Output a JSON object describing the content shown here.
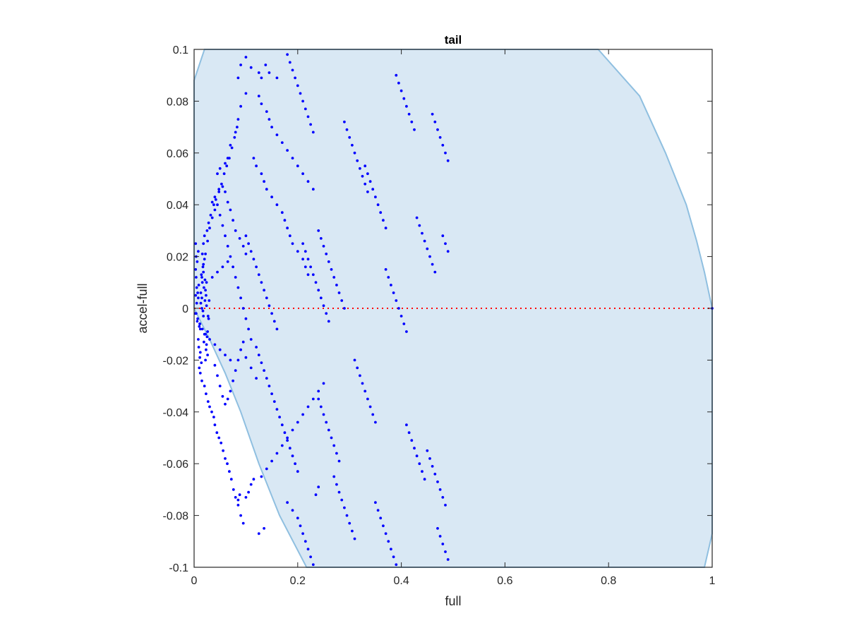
{
  "chart_data": {
    "type": "scatter",
    "title": "tail",
    "xlabel": "full",
    "ylabel": "accel-full",
    "xlim": [
      0,
      1
    ],
    "ylim": [
      -0.1,
      0.1
    ],
    "xticks": [
      0,
      0.2,
      0.4,
      0.6,
      0.8,
      1
    ],
    "xtick_labels": [
      "0",
      "0.2",
      "0.4",
      "0.6",
      "0.8",
      "1"
    ],
    "yticks": [
      0.1,
      0.08,
      0.06,
      0.04,
      0.02,
      0,
      -0.02,
      -0.04,
      -0.06,
      -0.08,
      -0.1
    ],
    "ytick_labels": [
      "0.1",
      "0.08",
      "0.06",
      "0.04",
      "0.02",
      "0",
      "-0.02",
      "-0.04",
      "-0.06",
      "-0.08",
      "-0.1"
    ],
    "grid": false,
    "colors": {
      "points": "#0000ff",
      "region_fill": "#d9e8f4",
      "region_edge": "#8fbfe0",
      "zero_line": "#ff0000",
      "axes": "#262626"
    },
    "region_boundary": [
      [
        0,
        0.088
      ],
      [
        0.02,
        0.1
      ],
      [
        0.78,
        0.1
      ],
      [
        0.86,
        0.082
      ],
      [
        0.91,
        0.06
      ],
      [
        0.95,
        0.04
      ],
      [
        0.97,
        0.026
      ],
      [
        0.985,
        0.014
      ],
      [
        1,
        0
      ],
      [
        1,
        -0.087
      ],
      [
        0.985,
        -0.1
      ],
      [
        0.217,
        -0.1
      ],
      [
        0.165,
        -0.08
      ],
      [
        0.125,
        -0.06
      ],
      [
        0.09,
        -0.04
      ],
      [
        0.06,
        -0.025
      ],
      [
        0.03,
        -0.012
      ],
      [
        0.01,
        -0.004
      ],
      [
        0,
        0
      ]
    ],
    "zero_line": {
      "y": 0,
      "x_from": 0,
      "x_to": 1,
      "style": "dotted"
    },
    "series": [
      {
        "x": [
          0.003,
          0.006,
          0.009,
          0.012,
          0.015,
          0.018,
          0.022,
          0.026,
          0.004,
          0.008,
          0.013,
          0.017,
          0.021,
          0.025,
          0.029,
          0.002,
          0.007,
          0.011,
          0.016,
          0.02,
          0.024,
          0.005,
          0.01,
          0.014,
          0.019,
          0.023,
          0.028,
          0.003,
          0.009,
          0.015,
          0.021,
          0.027,
          0.006,
          0.012,
          0.018,
          0.024,
          0.004,
          0.011,
          0.017,
          0.023,
          0.008,
          0.014,
          0.02,
          0.026,
          0.003,
          0.01,
          0.016,
          0.022,
          0.004,
          0.005,
          0.007,
          0.008,
          0.011,
          0.013,
          0.016,
          0.019,
          0.022,
          0.024,
          0.03,
          0.035,
          0.04,
          0.045,
          0.05,
          0.055,
          0.06,
          0.065,
          0.07,
          0.018,
          0.02,
          0.025,
          0.028,
          0.032,
          0.038,
          0.042,
          0.048,
          0.053,
          0.058,
          0.063,
          0.068,
          0.073,
          0.078,
          0.083,
          0.012,
          0.015,
          0.02,
          0.023,
          0.027,
          0.03,
          0.034,
          0.038,
          0.04,
          0.044,
          0.048,
          0.052,
          0.056,
          0.06,
          0.064,
          0.068,
          0.072,
          0.076,
          0.08,
          0.085,
          0.09,
          0.095,
          0.015,
          0.018,
          0.022,
          0.026,
          0.03,
          0.035,
          0.04,
          0.045,
          0.05,
          0.055,
          0.06,
          0.065,
          0.07,
          0.075,
          0.08,
          0.085,
          0.09,
          0.095,
          0.1,
          0.105,
          0.04,
          0.045,
          0.05,
          0.055,
          0.06,
          0.065,
          0.07,
          0.075,
          0.08,
          0.085,
          0.09,
          0.095,
          0.1,
          0.11,
          0.12,
          0.035,
          0.04,
          0.048,
          0.055,
          0.06,
          0.065,
          0.07,
          0.075,
          0.08,
          0.088,
          0.095,
          0.1,
          0.045,
          0.05,
          0.06,
          0.065,
          0.07,
          0.08,
          0.085,
          0.09,
          0.1,
          0.085,
          0.088,
          0.1,
          0.105,
          0.125,
          0.135,
          0.11,
          0.115,
          0.085,
          0.09,
          0.1,
          0.11,
          0.125,
          0.13,
          0.138,
          0.145,
          0.16,
          0.1,
          0.105,
          0.11,
          0.115,
          0.12,
          0.125,
          0.13,
          0.135,
          0.14,
          0.145,
          0.15,
          0.155,
          0.16,
          0.11,
          0.12,
          0.125,
          0.13,
          0.135,
          0.14,
          0.145,
          0.15,
          0.155,
          0.16,
          0.165,
          0.17,
          0.175,
          0.18,
          0.185,
          0.19,
          0.195,
          0.2,
          0.115,
          0.12,
          0.13,
          0.135,
          0.14,
          0.15,
          0.16,
          0.17,
          0.175,
          0.18,
          0.185,
          0.19,
          0.2,
          0.21,
          0.215,
          0.22,
          0.125,
          0.13,
          0.14,
          0.145,
          0.15,
          0.16,
          0.17,
          0.18,
          0.19,
          0.2,
          0.21,
          0.22,
          0.23,
          0.13,
          0.14,
          0.15,
          0.16,
          0.17,
          0.18,
          0.19,
          0.2,
          0.21,
          0.22,
          0.23,
          0.24,
          0.25,
          0.18,
          0.19,
          0.2,
          0.205,
          0.21,
          0.215,
          0.22,
          0.225,
          0.23,
          0.235,
          0.24,
          0.18,
          0.185,
          0.19,
          0.195,
          0.2,
          0.205,
          0.21,
          0.215,
          0.22,
          0.225,
          0.23,
          0.21,
          0.215,
          0.22,
          0.225,
          0.23,
          0.235,
          0.24,
          0.245,
          0.25,
          0.255,
          0.26,
          0.24,
          0.245,
          0.25,
          0.255,
          0.26,
          0.265,
          0.27,
          0.275,
          0.28,
          0.24,
          0.245,
          0.25,
          0.255,
          0.26,
          0.265,
          0.27,
          0.275,
          0.28,
          0.285,
          0.29,
          0.27,
          0.275,
          0.28,
          0.285,
          0.29,
          0.295,
          0.3,
          0.305,
          0.31,
          0.29,
          0.295,
          0.3,
          0.305,
          0.31,
          0.315,
          0.32,
          0.325,
          0.33,
          0.335,
          0.31,
          0.315,
          0.32,
          0.325,
          0.33,
          0.335,
          0.34,
          0.345,
          0.35,
          0.33,
          0.335,
          0.34,
          0.345,
          0.35,
          0.355,
          0.36,
          0.365,
          0.37,
          0.35,
          0.355,
          0.36,
          0.365,
          0.37,
          0.375,
          0.38,
          0.385,
          0.39,
          0.37,
          0.375,
          0.38,
          0.385,
          0.39,
          0.395,
          0.4,
          0.405,
          0.41,
          0.39,
          0.395,
          0.4,
          0.405,
          0.41,
          0.415,
          0.42,
          0.425,
          0.41,
          0.415,
          0.42,
          0.425,
          0.43,
          0.435,
          0.44,
          0.445,
          0.43,
          0.435,
          0.44,
          0.445,
          0.45,
          0.455,
          0.46,
          0.465,
          0.45,
          0.455,
          0.46,
          0.465,
          0.47,
          0.475,
          0.48,
          0.485,
          0.46,
          0.465,
          0.47,
          0.475,
          0.48,
          0.485,
          0.49,
          0.47,
          0.475,
          0.48,
          0.485,
          0.49,
          0.48,
          0.485,
          0.49,
          1.0
        ],
        "y": [
          0.005,
          -0.005,
          0.009,
          -0.008,
          0.004,
          -0.003,
          0.007,
          -0.009,
          0.012,
          -0.012,
          0.002,
          -0.001,
          0.011,
          -0.011,
          0.003,
          -0.002,
          0.006,
          -0.006,
          0.01,
          -0.01,
          0.001,
          0.008,
          -0.007,
          0.013,
          -0.013,
          0.005,
          -0.004,
          0.015,
          -0.015,
          0.0,
          0.003,
          -0.003,
          0.018,
          -0.017,
          0.014,
          -0.014,
          0.02,
          -0.019,
          0.016,
          -0.016,
          0.022,
          -0.021,
          0.019,
          -0.018,
          0.025,
          -0.023,
          0.021,
          -0.02,
          -0.002,
          0.002,
          -0.004,
          0.004,
          -0.006,
          0.006,
          -0.008,
          0.008,
          -0.01,
          0.01,
          -0.012,
          0.012,
          -0.014,
          0.014,
          -0.016,
          0.016,
          -0.018,
          0.018,
          -0.02,
          0.025,
          0.028,
          0.03,
          0.033,
          0.036,
          0.04,
          0.042,
          0.045,
          0.048,
          0.052,
          0.055,
          0.058,
          0.062,
          0.066,
          0.07,
          -0.025,
          -0.028,
          -0.03,
          -0.033,
          -0.036,
          -0.038,
          -0.04,
          -0.042,
          -0.045,
          -0.048,
          -0.05,
          -0.052,
          -0.055,
          -0.058,
          -0.06,
          -0.063,
          -0.066,
          -0.07,
          -0.073,
          -0.076,
          -0.08,
          -0.083,
          0.012,
          0.017,
          0.021,
          0.026,
          0.031,
          0.035,
          0.038,
          0.04,
          0.036,
          0.032,
          0.028,
          0.024,
          0.02,
          0.016,
          0.012,
          0.008,
          0.004,
          0.0,
          -0.004,
          -0.008,
          -0.022,
          -0.026,
          -0.03,
          -0.034,
          -0.037,
          -0.035,
          -0.032,
          -0.028,
          -0.024,
          -0.02,
          -0.016,
          -0.013,
          -0.019,
          -0.023,
          -0.027,
          0.041,
          0.043,
          0.046,
          0.047,
          0.045,
          0.041,
          0.038,
          0.034,
          0.03,
          0.027,
          0.024,
          0.021,
          0.052,
          0.054,
          0.056,
          0.058,
          0.063,
          0.068,
          0.073,
          0.078,
          0.083,
          -0.074,
          -0.072,
          -0.073,
          -0.071,
          -0.087,
          -0.085,
          -0.068,
          -0.066,
          0.089,
          0.094,
          0.097,
          0.093,
          0.091,
          0.089,
          0.094,
          0.091,
          0.089,
          0.028,
          0.025,
          0.022,
          0.019,
          0.016,
          0.013,
          0.01,
          0.007,
          0.004,
          0.001,
          -0.002,
          -0.005,
          -0.008,
          -0.012,
          -0.015,
          -0.018,
          -0.021,
          -0.024,
          -0.027,
          -0.03,
          -0.033,
          -0.036,
          -0.039,
          -0.042,
          -0.045,
          -0.048,
          -0.051,
          -0.054,
          -0.057,
          -0.06,
          -0.063,
          0.058,
          0.055,
          0.052,
          0.049,
          0.046,
          0.043,
          0.04,
          0.037,
          0.034,
          0.031,
          0.028,
          0.025,
          0.022,
          0.019,
          0.016,
          0.013,
          0.082,
          0.079,
          0.076,
          0.073,
          0.07,
          0.067,
          0.064,
          0.061,
          0.058,
          0.055,
          0.052,
          0.049,
          0.046,
          -0.065,
          -0.062,
          -0.059,
          -0.056,
          -0.053,
          -0.05,
          -0.047,
          -0.044,
          -0.041,
          -0.038,
          -0.035,
          -0.032,
          -0.029,
          -0.075,
          -0.078,
          -0.081,
          -0.084,
          -0.087,
          -0.09,
          -0.093,
          -0.096,
          -0.099,
          -0.072,
          -0.069,
          0.098,
          0.095,
          0.092,
          0.089,
          0.086,
          0.083,
          0.08,
          0.077,
          0.074,
          0.071,
          0.068,
          0.025,
          0.022,
          0.019,
          0.016,
          0.013,
          0.01,
          0.007,
          0.004,
          0.001,
          -0.002,
          -0.005,
          -0.035,
          -0.038,
          -0.041,
          -0.044,
          -0.047,
          -0.05,
          -0.053,
          -0.056,
          -0.059,
          0.03,
          0.027,
          0.024,
          0.021,
          0.018,
          0.015,
          0.012,
          0.009,
          0.006,
          0.003,
          0.0,
          -0.065,
          -0.068,
          -0.071,
          -0.074,
          -0.077,
          -0.08,
          -0.083,
          -0.086,
          -0.089,
          0.072,
          0.069,
          0.066,
          0.063,
          0.06,
          0.057,
          0.054,
          0.051,
          0.048,
          0.045,
          -0.02,
          -0.023,
          -0.026,
          -0.029,
          -0.032,
          -0.035,
          -0.038,
          -0.041,
          -0.044,
          0.055,
          0.052,
          0.049,
          0.046,
          0.043,
          0.04,
          0.037,
          0.034,
          0.031,
          -0.075,
          -0.078,
          -0.081,
          -0.084,
          -0.087,
          -0.09,
          -0.093,
          -0.096,
          -0.099,
          0.015,
          0.012,
          0.009,
          0.006,
          0.003,
          0.0,
          -0.003,
          -0.006,
          -0.009,
          0.09,
          0.087,
          0.084,
          0.081,
          0.078,
          0.075,
          0.072,
          0.069,
          -0.045,
          -0.048,
          -0.051,
          -0.054,
          -0.057,
          -0.06,
          -0.063,
          -0.066,
          0.035,
          0.032,
          0.029,
          0.026,
          0.023,
          0.02,
          0.017,
          0.014,
          -0.055,
          -0.058,
          -0.061,
          -0.064,
          -0.067,
          -0.07,
          -0.073,
          -0.076,
          0.075,
          0.072,
          0.069,
          0.066,
          0.063,
          0.06,
          0.057,
          -0.085,
          -0.088,
          -0.091,
          -0.094,
          -0.097,
          0.028,
          0.025,
          0.022,
          0.0
        ]
      }
    ]
  }
}
